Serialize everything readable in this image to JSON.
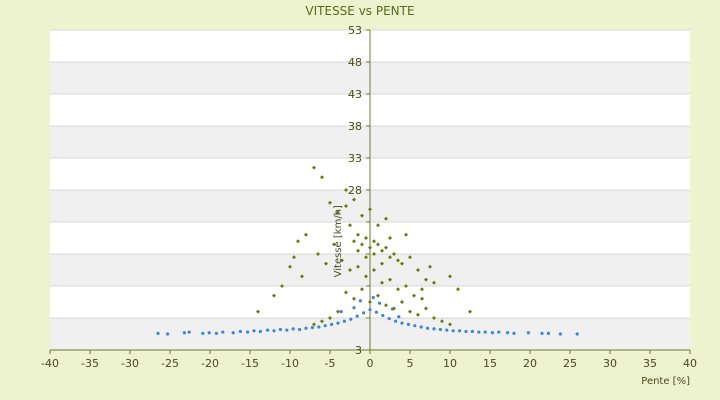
{
  "chart_data": {
    "type": "scatter",
    "title": "VITESSE vs PENTE",
    "xlabel": "Pente [%]",
    "ylabel": "Vitesse [km/h]",
    "xlim": [
      -40,
      40
    ],
    "ylim": [
      3,
      53
    ],
    "xticks": [
      -40,
      -35,
      -30,
      -25,
      -20,
      -15,
      -10,
      -5,
      0,
      5,
      10,
      15,
      20,
      25,
      30,
      35,
      40
    ],
    "yticks": [
      3,
      8,
      13,
      18,
      23,
      28,
      33,
      38,
      43,
      48,
      53
    ],
    "ytick_labels_shown": [
      3,
      28,
      33,
      38,
      43,
      48,
      53
    ],
    "grid": "horizontal alternating bands",
    "legend": "none",
    "series": [
      {
        "color": "#3b86d6",
        "marker": "dot",
        "values": [
          [
            -26.5,
            5.6
          ],
          [
            -25.3,
            5.5
          ],
          [
            -23.2,
            5.7
          ],
          [
            -22.6,
            5.8
          ],
          [
            -20.9,
            5.6
          ],
          [
            -20.1,
            5.7
          ],
          [
            -19.2,
            5.6
          ],
          [
            -18.4,
            5.8
          ],
          [
            -17.1,
            5.7
          ],
          [
            -16.2,
            5.9
          ],
          [
            -15.3,
            5.8
          ],
          [
            -14.5,
            6.0
          ],
          [
            -13.7,
            5.9
          ],
          [
            -12.8,
            6.1
          ],
          [
            -12.0,
            6.0
          ],
          [
            -11.2,
            6.2
          ],
          [
            -10.4,
            6.1
          ],
          [
            -9.6,
            6.3
          ],
          [
            -8.8,
            6.2
          ],
          [
            -8.0,
            6.4
          ],
          [
            -7.2,
            6.5
          ],
          [
            -6.4,
            6.6
          ],
          [
            -5.6,
            6.8
          ],
          [
            -4.8,
            7.0
          ],
          [
            -4.0,
            7.2
          ],
          [
            -3.2,
            7.5
          ],
          [
            -2.4,
            7.8
          ],
          [
            -1.6,
            8.3
          ],
          [
            -0.8,
            8.8
          ],
          [
            0.0,
            9.3
          ],
          [
            0.8,
            8.9
          ],
          [
            1.6,
            8.4
          ],
          [
            2.4,
            7.9
          ],
          [
            3.2,
            7.5
          ],
          [
            4.0,
            7.2
          ],
          [
            4.8,
            7.0
          ],
          [
            5.6,
            6.8
          ],
          [
            6.4,
            6.6
          ],
          [
            7.2,
            6.4
          ],
          [
            8.0,
            6.3
          ],
          [
            8.8,
            6.2
          ],
          [
            9.6,
            6.1
          ],
          [
            10.4,
            6.0
          ],
          [
            11.2,
            6.0
          ],
          [
            12.0,
            5.9
          ],
          [
            12.8,
            5.9
          ],
          [
            13.6,
            5.8
          ],
          [
            14.4,
            5.8
          ],
          [
            15.3,
            5.7
          ],
          [
            16.1,
            5.8
          ],
          [
            17.2,
            5.7
          ],
          [
            18.0,
            5.6
          ],
          [
            19.8,
            5.7
          ],
          [
            21.5,
            5.6
          ],
          [
            22.3,
            5.6
          ],
          [
            23.8,
            5.5
          ],
          [
            25.9,
            5.5
          ],
          [
            -3.6,
            9.0
          ],
          [
            -2.0,
            9.6
          ],
          [
            1.2,
            10.3
          ],
          [
            2.8,
            9.4
          ],
          [
            0.4,
            11.2
          ],
          [
            -1.2,
            10.7
          ],
          [
            3.6,
            8.2
          ]
        ]
      },
      {
        "color": "#6b7a10",
        "marker": "diamond",
        "values": [
          [
            -7.0,
            31.5
          ],
          [
            -6.0,
            30.0
          ],
          [
            -5.0,
            26.0
          ],
          [
            -4.0,
            24.5
          ],
          [
            -3.0,
            25.5
          ],
          [
            -2.5,
            22.5
          ],
          [
            -2.0,
            20.0
          ],
          [
            -1.5,
            21.0
          ],
          [
            -1.0,
            19.5
          ],
          [
            -0.5,
            20.5
          ],
          [
            0.0,
            19.0
          ],
          [
            0.5,
            20.0
          ],
          [
            1.0,
            19.5
          ],
          [
            1.5,
            18.5
          ],
          [
            2.0,
            19.0
          ],
          [
            2.5,
            17.5
          ],
          [
            3.0,
            18.0
          ],
          [
            3.5,
            17.0
          ],
          [
            4.0,
            16.5
          ],
          [
            5.0,
            17.5
          ],
          [
            6.0,
            15.5
          ],
          [
            7.0,
            14.0
          ],
          [
            -8.0,
            21.0
          ],
          [
            -9.0,
            20.0
          ],
          [
            -9.5,
            17.5
          ],
          [
            -10.0,
            16.0
          ],
          [
            -8.5,
            14.5
          ],
          [
            -6.5,
            18.0
          ],
          [
            -5.5,
            16.5
          ],
          [
            -4.5,
            19.5
          ],
          [
            -3.5,
            17.0
          ],
          [
            -2.5,
            15.5
          ],
          [
            -1.5,
            16.0
          ],
          [
            -0.5,
            14.5
          ],
          [
            0.5,
            15.5
          ],
          [
            1.5,
            13.5
          ],
          [
            2.5,
            14.0
          ],
          [
            3.5,
            12.5
          ],
          [
            4.5,
            13.0
          ],
          [
            5.5,
            11.5
          ],
          [
            6.5,
            11.0
          ],
          [
            8.0,
            13.5
          ],
          [
            10.0,
            14.5
          ],
          [
            -3.0,
            12.0
          ],
          [
            -2.0,
            11.0
          ],
          [
            -1.0,
            12.5
          ],
          [
            0.0,
            10.5
          ],
          [
            1.0,
            11.5
          ],
          [
            2.0,
            10.0
          ],
          [
            3.0,
            9.5
          ],
          [
            4.0,
            10.5
          ],
          [
            5.0,
            9.0
          ],
          [
            6.0,
            8.5
          ],
          [
            7.0,
            9.5
          ],
          [
            8.0,
            8.0
          ],
          [
            9.0,
            7.5
          ],
          [
            10.0,
            7.0
          ],
          [
            -4.0,
            9.0
          ],
          [
            -5.0,
            8.0
          ],
          [
            -6.0,
            7.5
          ],
          [
            -7.0,
            7.0
          ],
          [
            -14.0,
            9.0
          ],
          [
            -12.0,
            11.5
          ],
          [
            -11.0,
            13.0
          ],
          [
            -1.0,
            24.0
          ],
          [
            1.0,
            22.5
          ],
          [
            2.0,
            23.5
          ],
          [
            0.0,
            25.0
          ],
          [
            -2.0,
            26.5
          ],
          [
            -3.0,
            28.0
          ],
          [
            11.0,
            12.5
          ],
          [
            12.5,
            9.0
          ],
          [
            7.5,
            16.0
          ],
          [
            4.5,
            21.0
          ],
          [
            6.5,
            12.5
          ],
          [
            -0.5,
            17.5
          ],
          [
            0.5,
            18.0
          ],
          [
            1.5,
            16.5
          ],
          [
            -1.5,
            18.5
          ],
          [
            2.5,
            20.5
          ]
        ]
      }
    ]
  }
}
